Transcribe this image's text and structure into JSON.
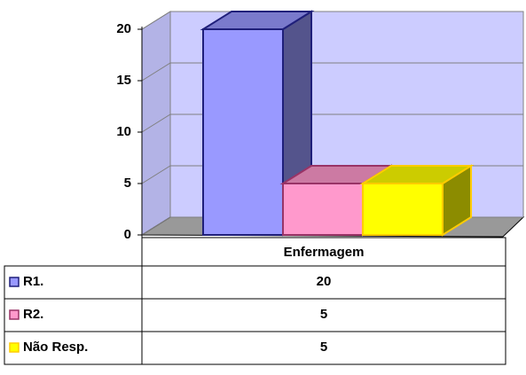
{
  "chart_data": {
    "type": "bar3d",
    "categories": [
      "Enfermagem"
    ],
    "series": [
      {
        "name": "R1.",
        "color": "#9999ff",
        "edge": "#1f1f7a",
        "values": [
          20
        ]
      },
      {
        "name": "R2.",
        "color": "#ff99cc",
        "edge": "#993366",
        "values": [
          5
        ]
      },
      {
        "name": "Não Resp.",
        "color": "#ffff00",
        "edge": "#ffcc00",
        "values": [
          5
        ]
      }
    ],
    "ylim": [
      0,
      20
    ],
    "yticks": [
      0,
      5,
      10,
      15,
      20
    ],
    "grid": true
  }
}
